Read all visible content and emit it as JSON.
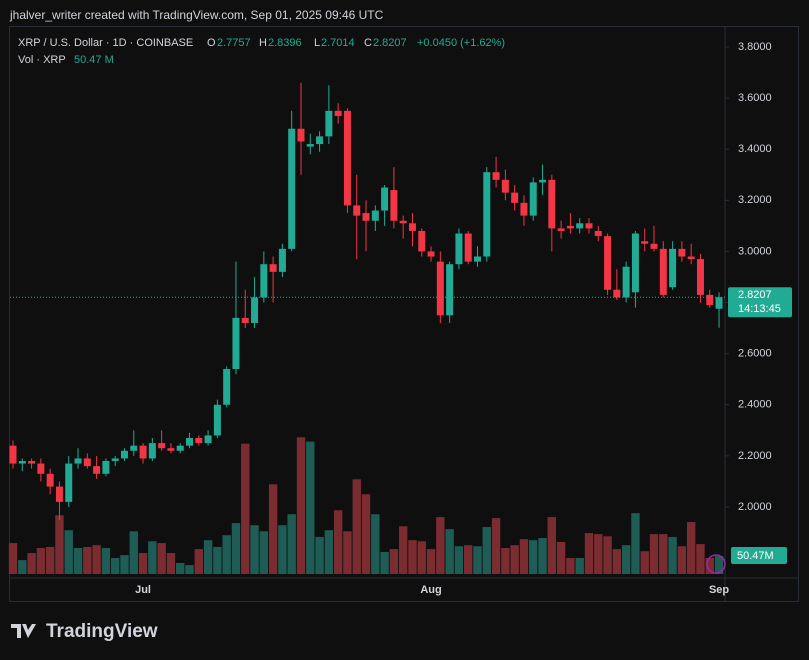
{
  "header": {
    "text": "jhalver_writer created with TradingView.com, Sep 01, 2025 09:46 UTC"
  },
  "chart_data": {
    "type": "candlestick",
    "categories": [
      null,
      null,
      null,
      null,
      null,
      null,
      null,
      null,
      null,
      null,
      null,
      null,
      null,
      null,
      "Jul",
      null,
      null,
      null,
      null,
      null,
      null,
      null,
      null,
      null,
      null,
      null,
      null,
      null,
      null,
      null,
      null,
      null,
      null,
      null,
      null,
      null,
      null,
      null,
      null,
      null,
      null,
      null,
      null,
      null,
      null,
      "Aug",
      null,
      null,
      null,
      null,
      null,
      null,
      null,
      null,
      null,
      null,
      null,
      null,
      null,
      null,
      null,
      null,
      null,
      null,
      null,
      null,
      null,
      null,
      null,
      null,
      null,
      null,
      null,
      null,
      null,
      null,
      "Sep"
    ],
    "series": [
      {
        "name": "XRP / U.S. Dollar · 1D · COINBASE",
        "up_color": "#22ab94",
        "down_color": "#f23645",
        "open": [
          2.24,
          2.17,
          2.18,
          2.17,
          2.13,
          2.08,
          2.02,
          2.17,
          2.19,
          2.16,
          2.13,
          2.18,
          2.19,
          2.22,
          2.24,
          2.19,
          2.25,
          2.23,
          2.22,
          2.24,
          2.27,
          2.25,
          2.28,
          2.4,
          2.54,
          2.74,
          2.72,
          2.82,
          2.95,
          2.92,
          3.01,
          3.48,
          3.41,
          3.42,
          3.45,
          3.55,
          3.55,
          3.18,
          3.15,
          3.12,
          3.16,
          3.24,
          3.12,
          3.11,
          3.08,
          3.0,
          2.96,
          2.75,
          2.95,
          3.07,
          2.96,
          2.98,
          3.31,
          3.28,
          3.23,
          3.19,
          3.14,
          3.27,
          3.28,
          3.09,
          3.1,
          3.09,
          3.11,
          3.08,
          3.06,
          2.85,
          2.82,
          2.84,
          3.04,
          3.03,
          3.01,
          2.86,
          3.01,
          2.98,
          2.97,
          2.83,
          2.7757
        ],
        "high": [
          2.26,
          2.19,
          2.19,
          2.19,
          2.15,
          2.1,
          2.2,
          2.23,
          2.21,
          2.2,
          2.19,
          2.2,
          2.23,
          2.3,
          2.25,
          2.27,
          2.3,
          2.25,
          2.25,
          2.29,
          2.28,
          2.3,
          2.42,
          2.55,
          2.96,
          2.85,
          2.9,
          3.0,
          2.98,
          3.03,
          3.55,
          3.66,
          3.46,
          3.47,
          3.65,
          3.58,
          3.56,
          3.3,
          3.2,
          3.18,
          3.26,
          3.33,
          3.14,
          3.15,
          3.09,
          3.02,
          3.0,
          2.96,
          3.09,
          3.08,
          3.02,
          3.33,
          3.37,
          3.32,
          3.26,
          3.22,
          3.29,
          3.34,
          3.3,
          3.12,
          3.15,
          3.13,
          3.13,
          3.1,
          3.07,
          2.93,
          2.96,
          3.08,
          3.09,
          3.1,
          3.04,
          3.04,
          3.04,
          3.03,
          2.99,
          2.85,
          2.8396
        ],
        "low": [
          2.15,
          2.14,
          2.15,
          2.1,
          2.05,
          1.95,
          2.0,
          2.15,
          2.15,
          2.11,
          2.12,
          2.16,
          2.18,
          2.2,
          2.17,
          2.18,
          2.22,
          2.21,
          2.21,
          2.23,
          2.24,
          2.24,
          2.27,
          2.39,
          2.52,
          2.7,
          2.7,
          2.8,
          2.8,
          2.9,
          3.0,
          3.3,
          3.38,
          3.39,
          3.42,
          3.5,
          3.15,
          2.97,
          3.0,
          3.08,
          3.1,
          3.09,
          3.05,
          3.02,
          2.98,
          2.96,
          2.72,
          2.72,
          2.93,
          2.95,
          2.94,
          2.96,
          3.25,
          3.2,
          3.16,
          3.1,
          3.12,
          3.22,
          3.0,
          3.05,
          3.07,
          3.07,
          3.07,
          3.04,
          2.83,
          2.81,
          2.8,
          2.78,
          3.0,
          3.0,
          2.82,
          2.85,
          2.96,
          2.95,
          2.8,
          2.78,
          2.7014
        ],
        "close": [
          2.17,
          2.18,
          2.17,
          2.13,
          2.08,
          2.02,
          2.17,
          2.19,
          2.16,
          2.13,
          2.18,
          2.19,
          2.22,
          2.24,
          2.19,
          2.25,
          2.23,
          2.22,
          2.24,
          2.27,
          2.25,
          2.28,
          2.4,
          2.54,
          2.74,
          2.72,
          2.82,
          2.95,
          2.92,
          3.01,
          3.48,
          3.43,
          3.42,
          3.45,
          3.55,
          3.53,
          3.18,
          3.14,
          3.12,
          3.16,
          3.25,
          3.12,
          3.11,
          3.08,
          3.0,
          2.98,
          2.75,
          2.95,
          3.07,
          2.96,
          2.98,
          3.31,
          3.28,
          3.23,
          3.19,
          3.14,
          3.27,
          3.28,
          3.09,
          3.08,
          3.09,
          3.11,
          3.09,
          3.06,
          2.85,
          2.82,
          2.94,
          3.07,
          3.03,
          3.01,
          2.83,
          3.01,
          2.98,
          2.97,
          2.83,
          2.79,
          2.8207
        ]
      }
    ],
    "volume": {
      "name": "Vol · XRP",
      "up_color": "#1e5c56",
      "down_color": "#7a2c30",
      "values": [
        87,
        39,
        59,
        73,
        76,
        165,
        123,
        73,
        76,
        81,
        73,
        45,
        53,
        120,
        59,
        92,
        87,
        59,
        31,
        25,
        70,
        95,
        76,
        109,
        143,
        366,
        137,
        120,
        252,
        137,
        168,
        384,
        372,
        104,
        123,
        179,
        120,
        266,
        224,
        168,
        62,
        70,
        134,
        95,
        92,
        70,
        160,
        126,
        78,
        81,
        78,
        132,
        157,
        73,
        81,
        98,
        95,
        101,
        160,
        90,
        45,
        45,
        115,
        112,
        106,
        70,
        81,
        171,
        64,
        112,
        112,
        104,
        78,
        146,
        84,
        45,
        50.47
      ],
      "legend_label": "50.47 M",
      "axis_label": "50.47M",
      "lim": [
        0,
        500
      ]
    },
    "ylim": [
      1.734,
      3.878
    ],
    "yticks": [
      {
        "value": 3.8,
        "label": "3.8000"
      },
      {
        "value": 3.6,
        "label": "3.6000"
      },
      {
        "value": 3.4,
        "label": "3.4000"
      },
      {
        "value": 3.2,
        "label": "3.2000"
      },
      {
        "value": 3.0,
        "label": "3.0000"
      },
      {
        "value": 2.8,
        "label": "2.8000"
      },
      {
        "value": 2.6,
        "label": "2.6000"
      },
      {
        "value": 2.4,
        "label": "2.4000"
      },
      {
        "value": 2.2,
        "label": "2.2000"
      },
      {
        "value": 2.0,
        "label": "2.0000"
      }
    ],
    "legend": {
      "o": "O",
      "h": "H",
      "l": "L",
      "c": "C",
      "change": "+0.0450 (+1.62%)"
    },
    "countdown": "14:13:45",
    "grid": false
  },
  "footer": {
    "brand": "TradingView"
  }
}
